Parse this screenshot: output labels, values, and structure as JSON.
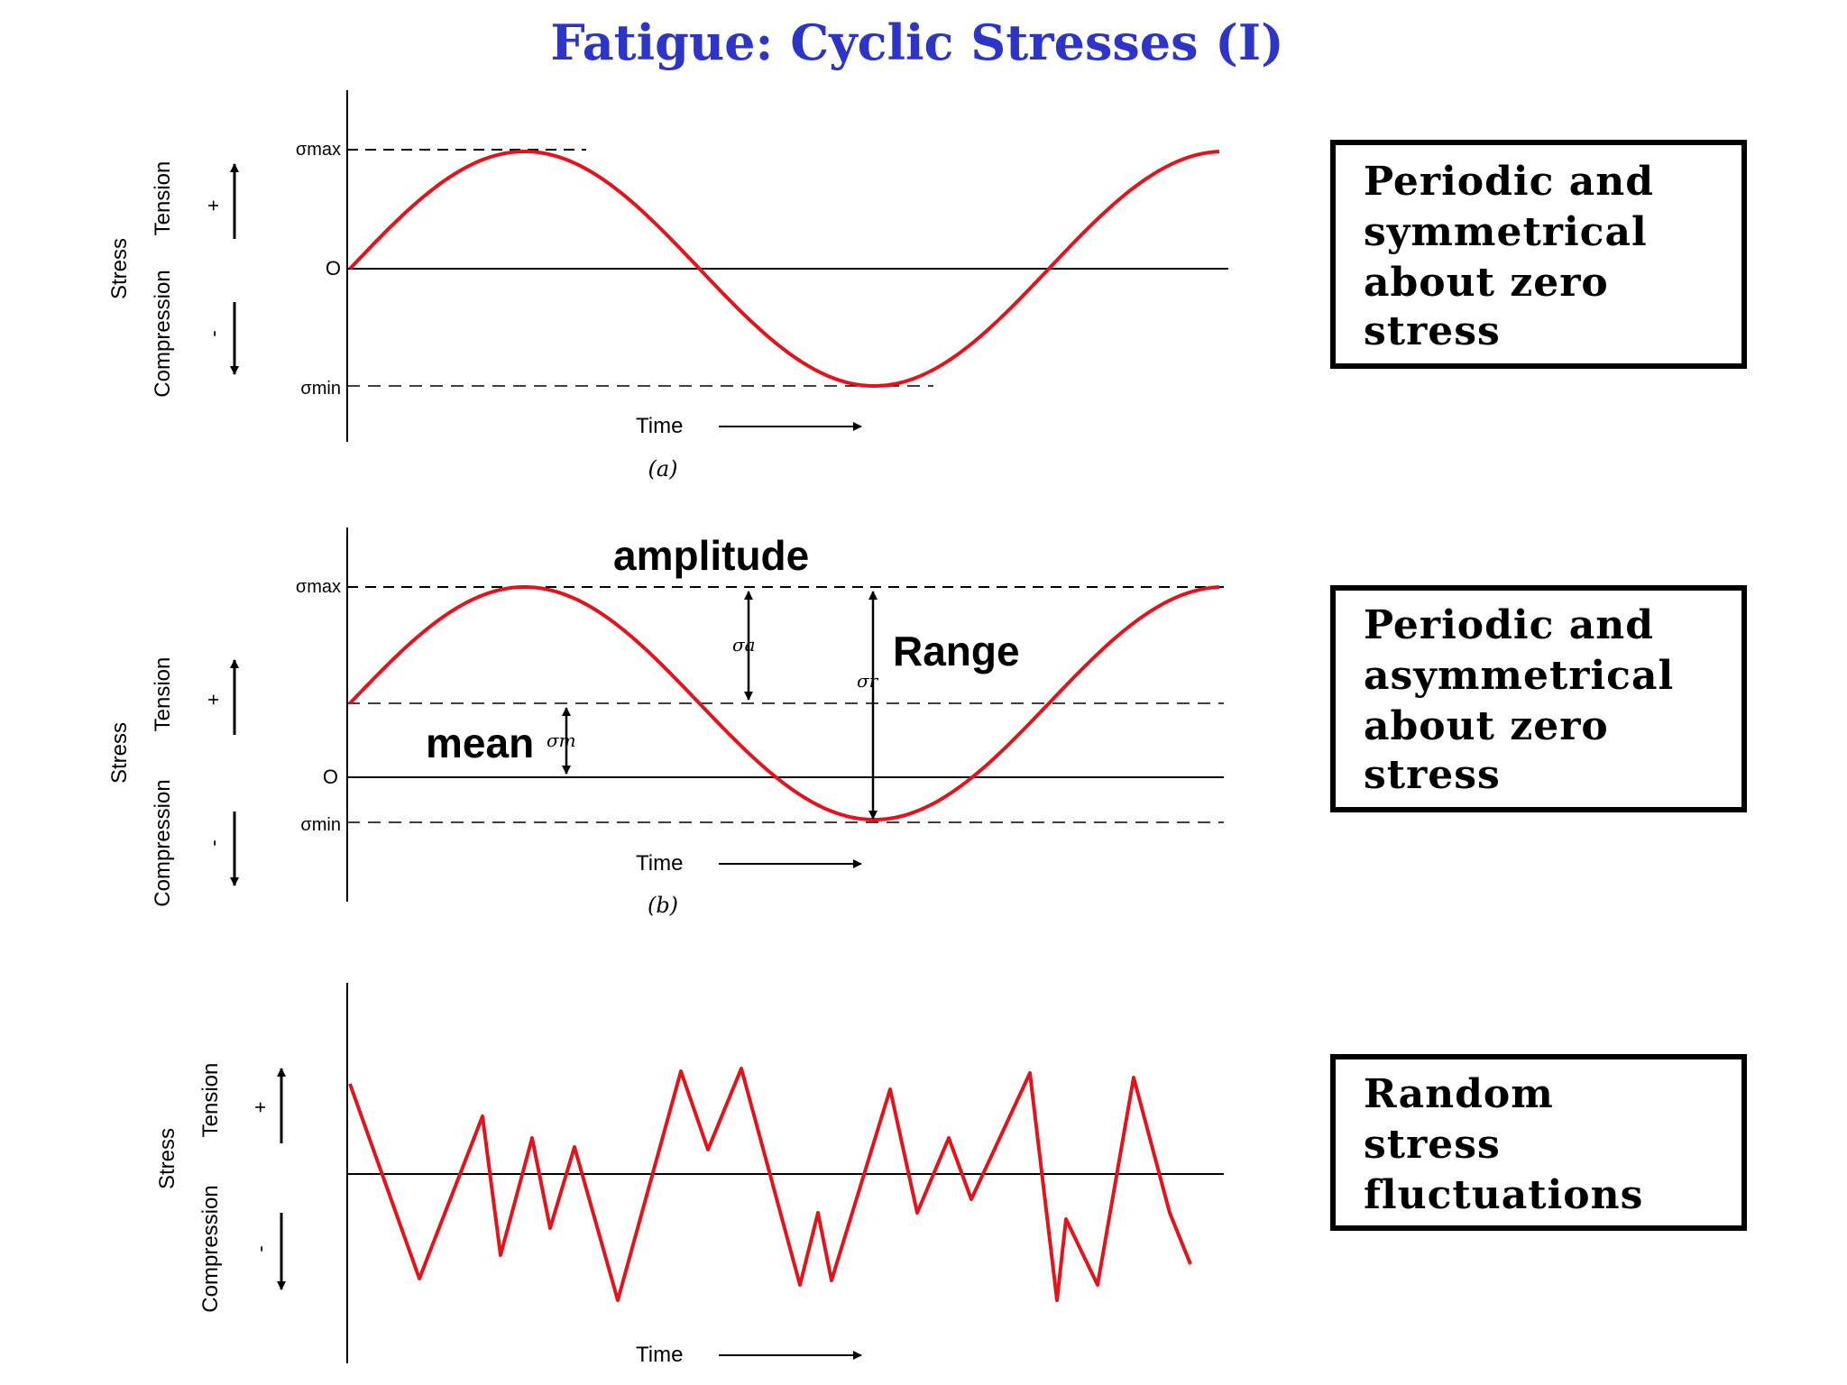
{
  "title": "Fatigue: Cyclic Stresses (I)",
  "colors": {
    "title": "#2d35c8",
    "curve": "#e4131b",
    "ink": "#000000"
  },
  "common": {
    "stress_label": "Stress",
    "tension_label": "Tension",
    "compression_label": "Compression",
    "plus_sign": "+",
    "minus_sign": "-",
    "time_label": "Time",
    "sigma_max": "σmax",
    "sigma_min": "σmin",
    "zero_label": "O"
  },
  "panel_a": {
    "caption": "(a)",
    "description": [
      "Periodic and",
      "symmetrical",
      "about zero",
      "stress"
    ]
  },
  "panel_b": {
    "caption": "(b)",
    "amplitude_label": "amplitude",
    "range_label": "Range",
    "mean_label": "mean",
    "sigma_a": "σa",
    "sigma_r": "σr",
    "sigma_m": "σm",
    "description": [
      "Periodic and",
      "asymmetrical",
      "about zero",
      "stress"
    ]
  },
  "panel_c": {
    "description": [
      "Random",
      "stress",
      "fluctuations"
    ]
  }
}
